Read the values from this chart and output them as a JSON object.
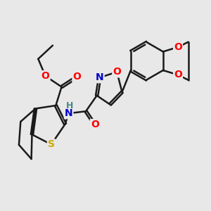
{
  "background_color": "#e8e8e8",
  "bond_color": "#1a1a1a",
  "bond_width": 1.8,
  "atom_colors": {
    "O": "#ff0000",
    "N": "#0000cc",
    "S": "#ccaa00",
    "H": "#4a8888",
    "C": "#1a1a1a"
  },
  "font_size_atoms": 10,
  "font_size_small": 8,
  "dbo": 0.055
}
